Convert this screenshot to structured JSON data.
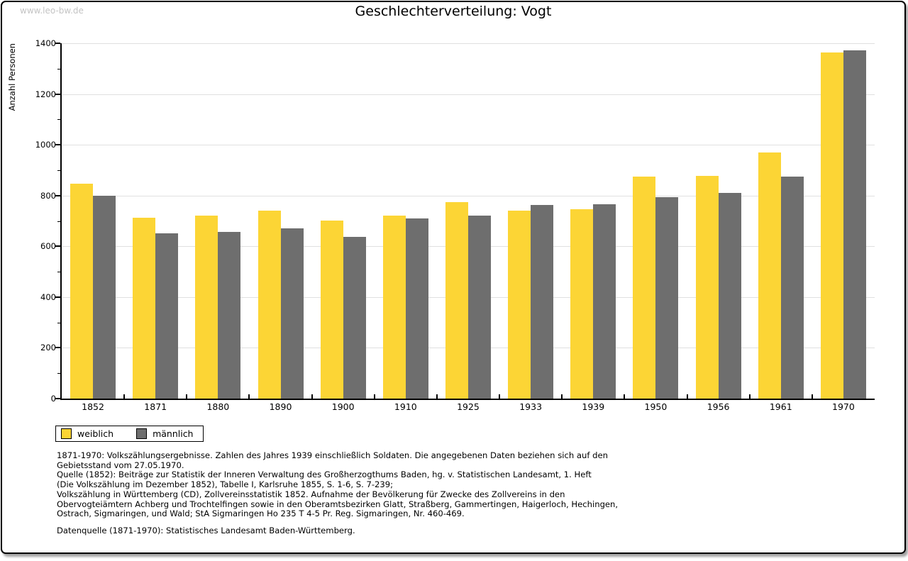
{
  "watermark": "www.leo-bw.de",
  "title": "Geschlechterverteilung: Vogt",
  "chart_data": {
    "type": "bar",
    "title": "Geschlechterverteilung: Vogt",
    "categories": [
      "1852",
      "1871",
      "1880",
      "1890",
      "1900",
      "1910",
      "1925",
      "1933",
      "1939",
      "1950",
      "1956",
      "1961",
      "1970"
    ],
    "series": [
      {
        "name": "weiblich",
        "color": "#fcd535",
        "values": [
          848,
          714,
          720,
          741,
          702,
          722,
          773,
          740,
          746,
          874,
          877,
          971,
          1363
        ]
      },
      {
        "name": "männlich",
        "color": "#6e6e6e",
        "values": [
          800,
          652,
          656,
          670,
          636,
          709,
          722,
          764,
          765,
          793,
          810,
          874,
          1371
        ]
      }
    ],
    "xlabel": "",
    "ylabel": "Anzahl Personen",
    "ylim": [
      0,
      1400
    ],
    "yticks": [
      0,
      200,
      400,
      600,
      800,
      1000,
      1200,
      1400
    ],
    "minor_tick_step": 100,
    "grid": true,
    "legend_position": "below-left",
    "gridline_color": "#e0e0e0"
  },
  "footer": {
    "lines": [
      "1871-1970: Volkszählungsergebnisse. Zahlen des Jahres 1939 einschließlich Soldaten. Die angegebenen Daten beziehen sich auf den",
      "Gebietsstand vom 27.05.1970.",
      "Quelle (1852): Beiträge zur Statistik der Inneren Verwaltung des Großherzogthums Baden, hg. v. Statistischen Landesamt, 1. Heft",
      "(Die Volkszählung im Dezember 1852), Tabelle I, Karlsruhe 1855, S. 1-6, S. 7-239;",
      "Volkszählung in Württemberg (CD), Zollvereinsstatistik 1852. Aufnahme der Bevölkerung für Zwecke des Zollvereins in den",
      "Obervogteiämtern Achberg und Trochtelfingen sowie in den Oberamtsbezirken Glatt, Straßberg, Gammertingen, Haigerloch, Hechingen,",
      "Ostrach, Sigmaringen, und Wald; StA Sigmaringen Ho 235 T 4-5 Pr. Reg. Sigmaringen, Nr. 460-469."
    ],
    "datasource": "Datenquelle (1871-1970): Statistisches Landesamt Baden-Württemberg."
  }
}
